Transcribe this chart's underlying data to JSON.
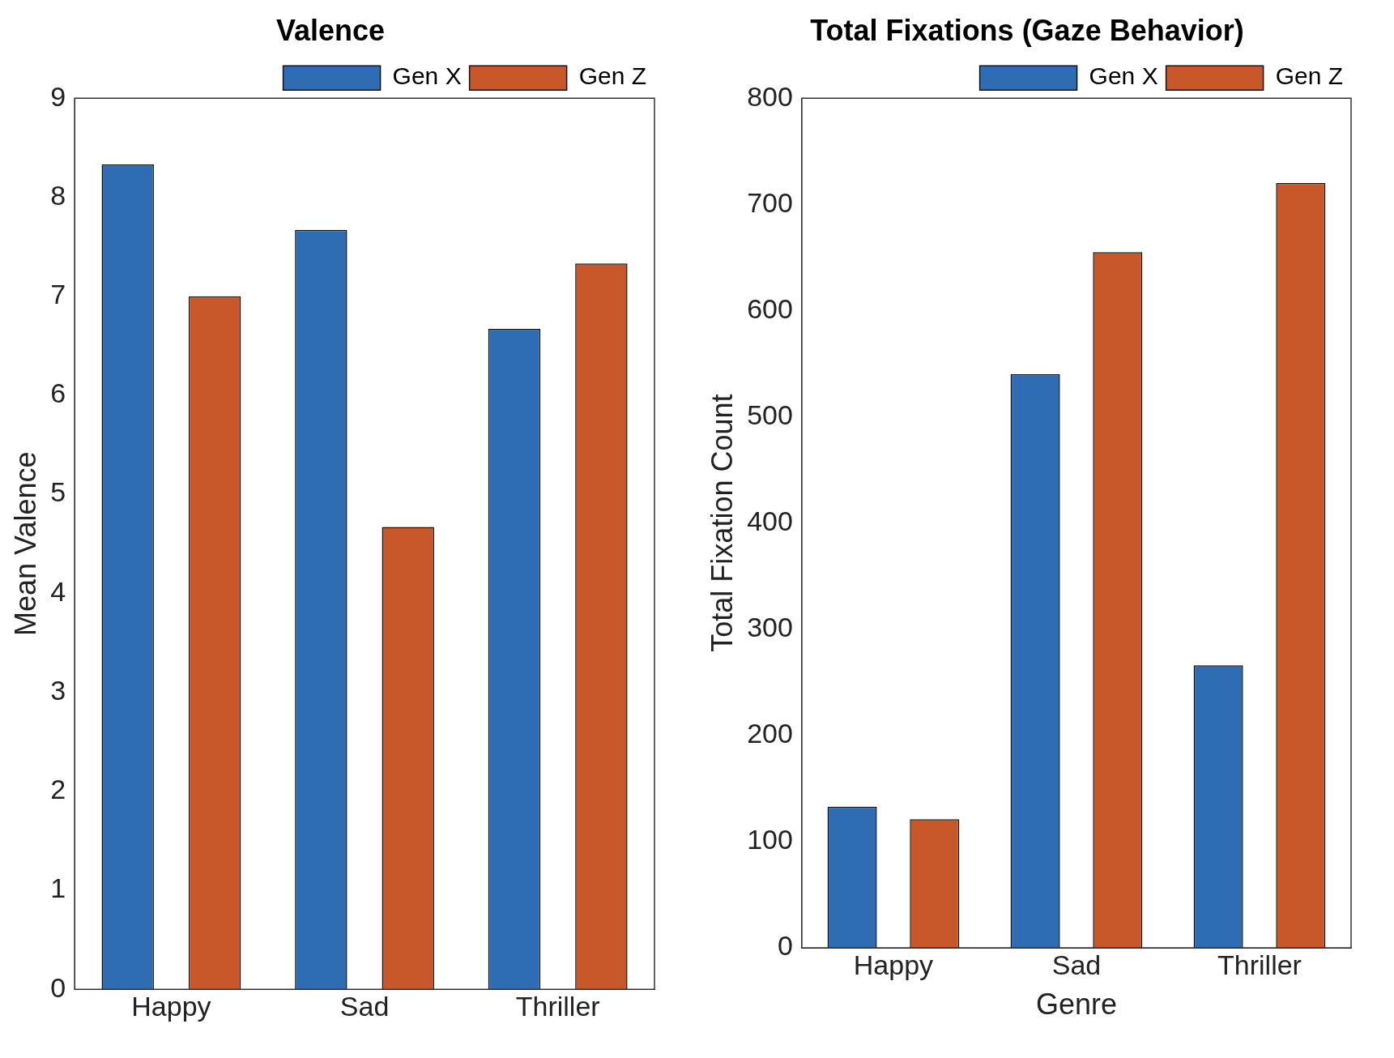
{
  "chart_data": [
    {
      "type": "bar",
      "title": "Valence",
      "ylabel": "Mean Valence",
      "categories": [
        "Happy",
        "Sad",
        "Thriller"
      ],
      "series": [
        {
          "name": "Gen X",
          "color": "#2e6db4",
          "values": [
            8.33,
            7.67,
            6.67
          ]
        },
        {
          "name": "Gen Z",
          "color": "#c8572a",
          "values": [
            7.0,
            4.67,
            7.33
          ]
        }
      ],
      "ylim": [
        0,
        9
      ],
      "yticks": [
        0,
        1,
        2,
        3,
        4,
        5,
        6,
        7,
        8,
        9
      ],
      "legend": "top right"
    },
    {
      "type": "bar",
      "title": "Total Fixations (Gaze Behavior)",
      "xlabel": "Genre",
      "ylabel": "Total Fixation Count",
      "categories": [
        "Happy",
        "Sad",
        "Thriller"
      ],
      "series": [
        {
          "name": "Gen X",
          "color": "#2e6db4",
          "values": [
            133,
            540,
            266
          ]
        },
        {
          "name": "Gen Z",
          "color": "#c8572a",
          "values": [
            121,
            655,
            720
          ]
        }
      ],
      "ylim": [
        0,
        800
      ],
      "yticks": [
        0,
        100,
        200,
        300,
        400,
        500,
        600,
        700,
        800
      ],
      "legend": "top right"
    }
  ]
}
